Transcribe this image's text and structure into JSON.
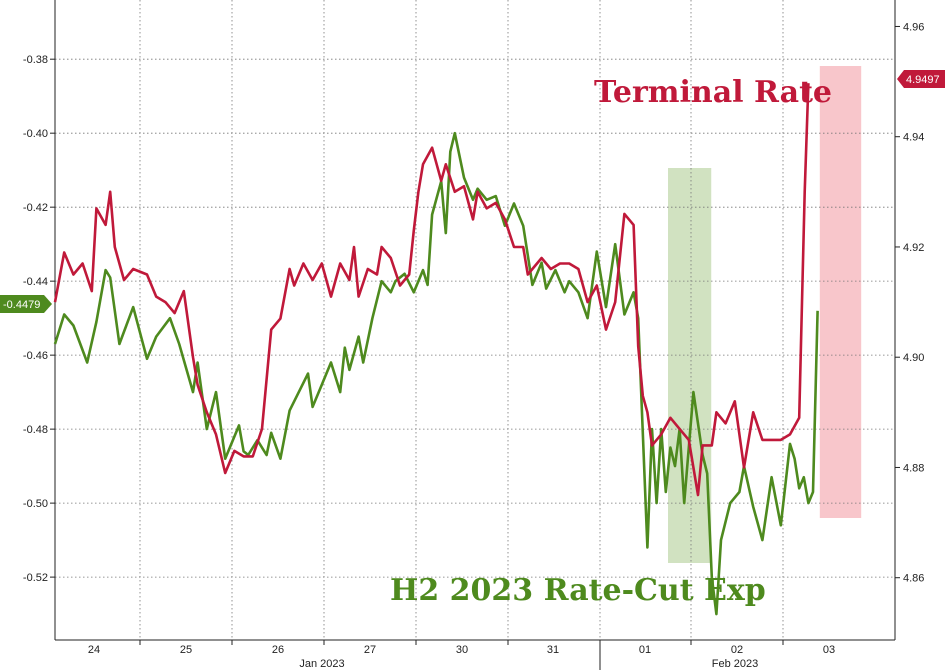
{
  "chart_data": {
    "type": "line",
    "title": "",
    "xlabel": "",
    "x_ticks": [
      "24",
      "25",
      "26",
      "27",
      "30",
      "31",
      "01",
      "02",
      "03"
    ],
    "month_labels": [
      "Jan 2023",
      "Feb 2023"
    ],
    "y_left": {
      "ylim": [
        -0.537,
        -0.364
      ],
      "ticks": [
        -0.38,
        -0.4,
        -0.42,
        -0.44,
        -0.46,
        -0.48,
        -0.5,
        -0.52
      ],
      "tick_labels": [
        "-0.38",
        "-0.40",
        "-0.42",
        "-0.44",
        "-0.46",
        "-0.48",
        "-0.50",
        "-0.52"
      ]
    },
    "y_right": {
      "ylim": [
        4.8487,
        4.9648
      ],
      "ticks": [
        4.96,
        4.94,
        4.92,
        4.9,
        4.88,
        4.86
      ],
      "tick_labels": [
        "4.96",
        "4.94",
        "4.92",
        "4.90",
        "4.88",
        "4.86"
      ]
    },
    "series": [
      {
        "name": "H2 2023 Rate-Cut Exp",
        "axis": "left",
        "color": "#4e8a1e",
        "last_value_label": "-0.4479",
        "x": [
          0.0,
          0.1,
          0.2,
          0.35,
          0.45,
          0.55,
          0.6,
          0.7,
          0.85,
          1.0,
          1.1,
          1.25,
          1.35,
          1.5,
          1.55,
          1.65,
          1.75,
          1.85,
          1.95,
          2.0,
          2.05,
          2.1,
          2.2,
          2.3,
          2.35,
          2.45,
          2.55,
          2.65,
          2.75,
          2.8,
          2.9,
          3.0,
          3.1,
          3.15,
          3.2,
          3.3,
          3.35,
          3.45,
          3.55,
          3.65,
          3.7,
          3.8,
          3.9,
          4.0,
          4.05,
          4.1,
          4.2,
          4.25,
          4.3,
          4.35,
          4.45,
          4.55,
          4.6,
          4.7,
          4.8,
          4.9,
          5.0,
          5.1,
          5.2,
          5.3,
          5.35,
          5.45,
          5.55,
          5.6,
          5.7,
          5.8,
          5.9,
          6.0,
          6.1,
          6.2,
          6.3,
          6.35,
          6.45,
          6.5,
          6.55,
          6.6,
          6.65,
          6.7,
          6.75,
          6.8,
          6.85,
          6.95,
          7.05,
          7.1,
          7.15,
          7.2,
          7.25,
          7.35,
          7.45,
          7.5,
          7.6,
          7.7,
          7.8,
          7.9,
          7.95,
          8.0,
          8.05,
          8.1,
          8.15,
          8.2,
          8.25,
          8.3
        ],
        "values": [
          -0.457,
          -0.449,
          -0.452,
          -0.462,
          -0.451,
          -0.437,
          -0.439,
          -0.457,
          -0.447,
          -0.461,
          -0.455,
          -0.45,
          -0.457,
          -0.47,
          -0.462,
          -0.48,
          -0.47,
          -0.488,
          -0.482,
          -0.479,
          -0.486,
          -0.487,
          -0.483,
          -0.487,
          -0.481,
          -0.488,
          -0.475,
          -0.47,
          -0.465,
          -0.474,
          -0.468,
          -0.462,
          -0.47,
          -0.458,
          -0.464,
          -0.455,
          -0.462,
          -0.45,
          -0.44,
          -0.443,
          -0.44,
          -0.438,
          -0.443,
          -0.437,
          -0.441,
          -0.422,
          -0.413,
          -0.427,
          -0.405,
          -0.4,
          -0.412,
          -0.418,
          -0.415,
          -0.418,
          -0.417,
          -0.425,
          -0.419,
          -0.425,
          -0.441,
          -0.435,
          -0.442,
          -0.437,
          -0.443,
          -0.44,
          -0.443,
          -0.45,
          -0.432,
          -0.447,
          -0.43,
          -0.449,
          -0.443,
          -0.45,
          -0.512,
          -0.48,
          -0.5,
          -0.48,
          -0.497,
          -0.485,
          -0.49,
          -0.48,
          -0.5,
          -0.47,
          -0.487,
          -0.492,
          -0.52,
          -0.53,
          -0.51,
          -0.5,
          -0.497,
          -0.49,
          -0.501,
          -0.51,
          -0.493,
          -0.506,
          -0.495,
          -0.484,
          -0.488,
          -0.496,
          -0.493,
          -0.5,
          -0.497,
          -0.448
        ]
      },
      {
        "name": "Terminal Rate",
        "axis": "right",
        "color": "#c0193a",
        "last_value_label": "4.9497",
        "x": [
          0.0,
          0.1,
          0.2,
          0.3,
          0.4,
          0.45,
          0.55,
          0.6,
          0.65,
          0.75,
          0.85,
          1.0,
          1.1,
          1.2,
          1.3,
          1.4,
          1.5,
          1.55,
          1.65,
          1.75,
          1.85,
          1.95,
          2.05,
          2.15,
          2.25,
          2.35,
          2.45,
          2.55,
          2.6,
          2.7,
          2.8,
          2.9,
          3.0,
          3.1,
          3.2,
          3.25,
          3.3,
          3.4,
          3.5,
          3.55,
          3.65,
          3.75,
          3.85,
          3.9,
          3.95,
          4.0,
          4.1,
          4.2,
          4.25,
          4.35,
          4.45,
          4.55,
          4.6,
          4.7,
          4.8,
          4.9,
          5.0,
          5.1,
          5.15,
          5.3,
          5.4,
          5.5,
          5.6,
          5.7,
          5.8,
          5.9,
          6.0,
          6.1,
          6.2,
          6.25,
          6.3,
          6.35,
          6.4,
          6.45,
          6.5,
          6.6,
          6.7,
          6.8,
          6.9,
          7.0,
          7.05,
          7.15,
          7.2,
          7.3,
          7.4,
          7.5,
          7.6,
          7.7,
          7.8,
          7.9,
          8.0,
          8.1,
          8.13,
          8.16,
          8.2
        ],
        "values": [
          4.91,
          4.919,
          4.915,
          4.917,
          4.912,
          4.927,
          4.924,
          4.93,
          4.92,
          4.914,
          4.916,
          4.915,
          4.911,
          4.91,
          4.908,
          4.912,
          4.9,
          4.895,
          4.89,
          4.886,
          4.879,
          4.883,
          4.882,
          4.882,
          4.887,
          4.905,
          4.907,
          4.916,
          4.913,
          4.917,
          4.914,
          4.917,
          4.911,
          4.917,
          4.914,
          4.92,
          4.911,
          4.916,
          4.915,
          4.92,
          4.918,
          4.913,
          4.915,
          4.923,
          4.93,
          4.935,
          4.938,
          4.932,
          4.935,
          4.93,
          4.931,
          4.925,
          4.93,
          4.927,
          4.928,
          4.925,
          4.92,
          4.92,
          4.915,
          4.918,
          4.916,
          4.917,
          4.917,
          4.916,
          4.91,
          4.913,
          4.905,
          4.91,
          4.926,
          4.925,
          4.924,
          4.902,
          4.893,
          4.89,
          4.884,
          4.886,
          4.889,
          4.887,
          4.885,
          4.875,
          4.884,
          4.884,
          4.89,
          4.888,
          4.892,
          4.88,
          4.89,
          4.885,
          4.885,
          4.885,
          4.886,
          4.889,
          4.91,
          4.93,
          4.9497
        ]
      }
    ],
    "highlights": [
      {
        "name": "green-shaded-region",
        "x_range": [
          6.25,
          6.72
        ],
        "color": "#c9ddb6"
      },
      {
        "name": "red-shaded-region",
        "x_range": [
          7.9,
          8.35
        ],
        "color": "#f7bcc2"
      }
    ],
    "annotations": {
      "terminal_rate_label": "Terminal Rate",
      "rate_cut_label": "H2 2023 Rate-Cut Exp"
    },
    "grid": true
  }
}
